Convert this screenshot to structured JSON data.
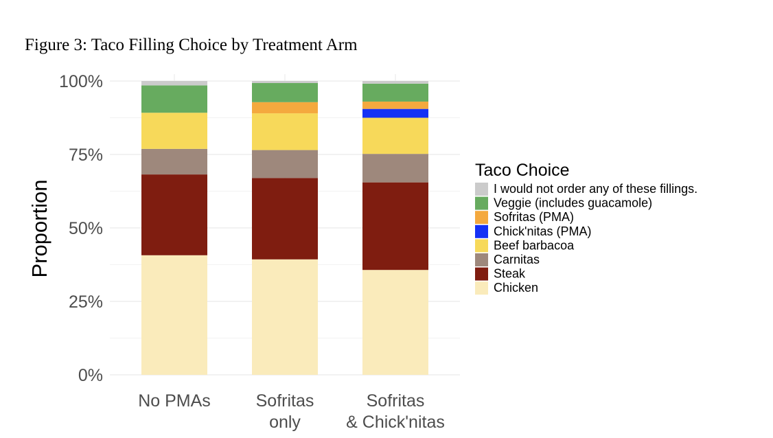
{
  "figure_title": "Figure 3: Taco Filling Choice by Treatment Arm",
  "chart_data": {
    "type": "bar",
    "stacked": true,
    "categories": [
      [
        "No PMAs"
      ],
      [
        "Sofritas",
        "only"
      ],
      [
        "Sofritas",
        "& Chick'nitas"
      ]
    ],
    "ylabel": "Proportion",
    "xlabel": "",
    "ylim": [
      0,
      1
    ],
    "yticks": [
      {
        "value": 0,
        "label": "0%"
      },
      {
        "value": 0.25,
        "label": "25%"
      },
      {
        "value": 0.5,
        "label": "50%"
      },
      {
        "value": 0.75,
        "label": "75%"
      },
      {
        "value": 1,
        "label": "100%"
      }
    ],
    "grid": true,
    "legend": {
      "title": "Taco Choice",
      "placement": "right"
    },
    "series": [
      {
        "name": "Chicken",
        "color": "#FAEBBB",
        "values": [
          0.407,
          0.393,
          0.357
        ]
      },
      {
        "name": "Steak",
        "color": "#7F1D10",
        "values": [
          0.275,
          0.277,
          0.298
        ]
      },
      {
        "name": "Carnitas",
        "color": "#9E887C",
        "values": [
          0.087,
          0.095,
          0.097
        ]
      },
      {
        "name": "Beef barbacoa",
        "color": "#F7D95A",
        "values": [
          0.123,
          0.125,
          0.123
        ]
      },
      {
        "name": "Chick'nitas (PMA)",
        "color": "#1531F5",
        "values": [
          0,
          0,
          0.03
        ]
      },
      {
        "name": "Sofritas (PMA)",
        "color": "#F4A93E",
        "values": [
          0,
          0.038,
          0.025
        ]
      },
      {
        "name": "Veggie (includes guacamole)",
        "color": "#67AB5F",
        "values": [
          0.093,
          0.065,
          0.061
        ]
      },
      {
        "name": "I would not order any of these fillings.",
        "color": "#CBCBCB",
        "values": [
          0.015,
          0.007,
          0.009
        ]
      }
    ]
  }
}
